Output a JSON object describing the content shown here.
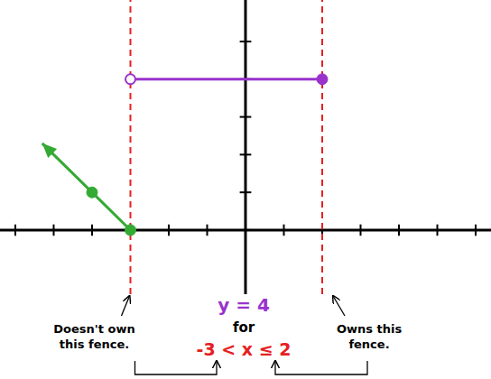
{
  "chart_data": {
    "type": "line",
    "xlim": [
      -6.4,
      6.4
    ],
    "ylim": [
      -1.7,
      6.1
    ],
    "xticks": [
      -6,
      -5,
      -4,
      -3,
      -2,
      -1,
      0,
      1,
      2,
      3,
      4,
      5,
      6
    ],
    "yticks": [
      0,
      1,
      2,
      3,
      4,
      5
    ],
    "tick_labels": false,
    "grid": false,
    "series": [
      {
        "type": "line",
        "color": "#e62020",
        "x": [
          -3,
          -3
        ],
        "values": [
          -1.7,
          6.1
        ],
        "line_style": "dashed"
      },
      {
        "type": "line",
        "color": "#e62020",
        "x": [
          2,
          2
        ],
        "values": [
          -1.7,
          6.1
        ],
        "line_style": "dashed"
      },
      {
        "type": "line",
        "color": "#33aa33",
        "x": [
          -3,
          -4,
          -5.3
        ],
        "values": [
          0,
          1,
          2.3
        ],
        "marker": "arrow"
      },
      {
        "type": "scatter",
        "color": "#33aa33",
        "x": [
          -3,
          -4
        ],
        "values": [
          0,
          1
        ],
        "marker": "circle"
      },
      {
        "type": "line",
        "color": "#9933cc",
        "x": [
          -3,
          2
        ],
        "values": [
          4,
          4
        ],
        "marker": "none"
      },
      {
        "type": "scatter",
        "color": "#9933cc",
        "x": [
          -3
        ],
        "values": [
          4
        ],
        "marker": "open_circle"
      },
      {
        "type": "scatter",
        "color": "#9933cc",
        "x": [
          2
        ],
        "values": [
          4
        ],
        "marker": "circle"
      }
    ],
    "annotations": {
      "equation": "y = 4",
      "connector": "for",
      "condition": "-3 < x ≤ 2",
      "left_note": [
        "Doesn't own",
        "this fence."
      ],
      "right_note": [
        "Owns this",
        "fence."
      ]
    }
  }
}
